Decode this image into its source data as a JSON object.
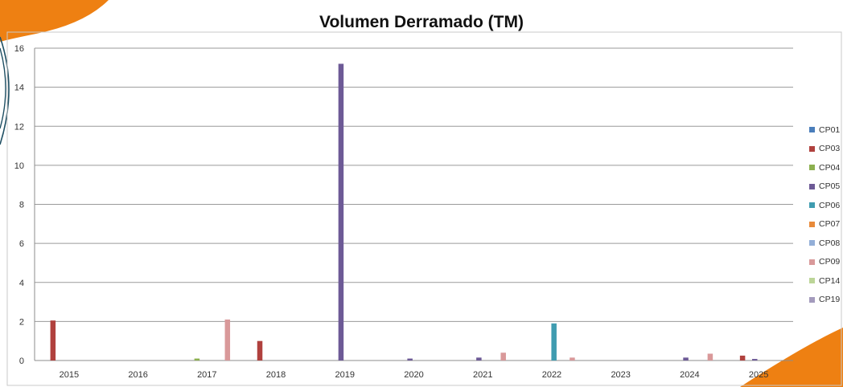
{
  "chart_data": {
    "type": "bar",
    "title": "Volumen Derramado (TM)",
    "xlabel": "",
    "ylabel": "",
    "ylim": [
      0,
      16
    ],
    "yticks": [
      0,
      2,
      4,
      6,
      8,
      10,
      12,
      14,
      16
    ],
    "grid": true,
    "legend_position": "right",
    "categories": [
      "2015",
      "2016",
      "2017",
      "2018",
      "2019",
      "2020",
      "2021",
      "2022",
      "2023",
      "2024",
      "2025"
    ],
    "series": [
      {
        "name": "CP01",
        "color": "#4a7ebb",
        "values": [
          0,
          0,
          0,
          0,
          0,
          0,
          0,
          0,
          0,
          0,
          0
        ]
      },
      {
        "name": "CP03",
        "color": "#b0413e",
        "values": [
          2.05,
          0,
          0,
          1.0,
          0,
          0,
          0,
          0,
          0,
          0,
          0.25
        ]
      },
      {
        "name": "CP04",
        "color": "#8cb04f",
        "values": [
          0,
          0,
          0.1,
          0,
          0,
          0,
          0,
          0,
          0,
          0,
          0
        ]
      },
      {
        "name": "CP05",
        "color": "#6d5a96",
        "values": [
          0,
          0,
          0,
          0,
          15.2,
          0.1,
          0.15,
          0,
          0,
          0.15,
          0.08
        ]
      },
      {
        "name": "CP06",
        "color": "#3f9cb0",
        "values": [
          0,
          0,
          0,
          0,
          0,
          0,
          0,
          1.9,
          0,
          0,
          0
        ]
      },
      {
        "name": "CP07",
        "color": "#e88a3a",
        "values": [
          0,
          0,
          0,
          0,
          0,
          0,
          0,
          0,
          0,
          0,
          0
        ]
      },
      {
        "name": "CP08",
        "color": "#93afd8",
        "values": [
          0,
          0,
          0,
          0,
          0,
          0,
          0,
          0,
          0,
          0,
          0
        ]
      },
      {
        "name": "CP09",
        "color": "#d9999a",
        "values": [
          0,
          0,
          2.1,
          0,
          0,
          0,
          0.4,
          0.15,
          0,
          0.35,
          0
        ]
      },
      {
        "name": "CP14",
        "color": "#bcd598",
        "values": [
          0,
          0,
          0,
          0,
          0,
          0,
          0,
          0,
          0,
          0,
          0
        ]
      },
      {
        "name": "CP19",
        "color": "#a49bbd",
        "values": [
          0,
          0,
          0,
          0,
          0,
          0,
          0,
          0,
          0,
          0,
          0
        ]
      }
    ]
  },
  "decor": {
    "orange": "#ee8012",
    "teal_ring": "#1f4f63"
  }
}
